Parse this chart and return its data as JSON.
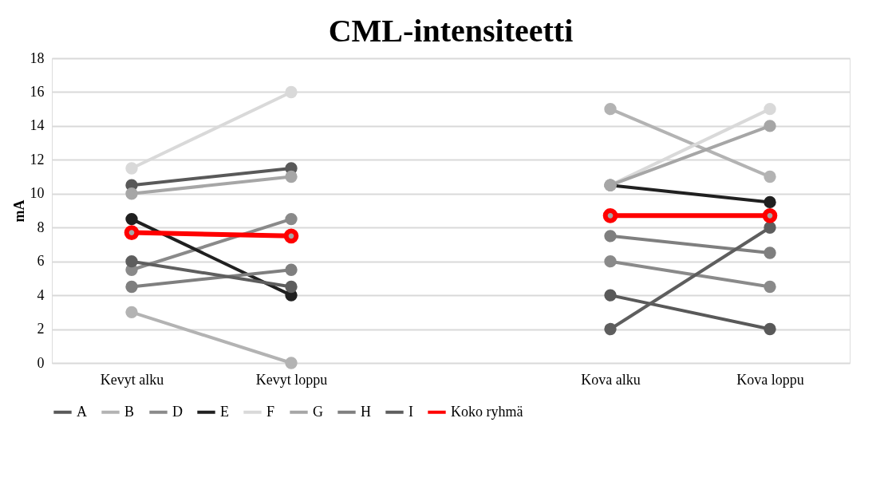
{
  "chart_data": {
    "type": "line",
    "title": "CML-intensiteetti",
    "ylabel": "mA",
    "categories": [
      "Kevyt alku",
      "Kevyt loppu",
      null,
      "Kova alku",
      "Kova loppu"
    ],
    "ylim": [
      0,
      18
    ],
    "yticks": [
      0,
      2,
      4,
      6,
      8,
      10,
      12,
      14,
      16,
      18
    ],
    "grid": "y",
    "legend": "bottom",
    "marker": "circle",
    "series": [
      {
        "name": "A",
        "color": "#595959",
        "values": [
          10.5,
          11.5,
          null,
          4,
          2
        ]
      },
      {
        "name": "B",
        "color": "#b3b3b3",
        "values": [
          3,
          0,
          null,
          15,
          11
        ]
      },
      {
        "name": "D",
        "color": "#8a8a8a",
        "values": [
          5.5,
          8.5,
          null,
          6,
          4.5
        ]
      },
      {
        "name": "E",
        "color": "#202020",
        "values": [
          8.5,
          4,
          null,
          10.5,
          9.5
        ]
      },
      {
        "name": "F",
        "color": "#d9d9d9",
        "values": [
          11.5,
          16,
          null,
          10.5,
          15
        ]
      },
      {
        "name": "G",
        "color": "#a6a6a6",
        "values": [
          10,
          11,
          null,
          10.5,
          14
        ]
      },
      {
        "name": "H",
        "color": "#7f7f7f",
        "values": [
          4.5,
          5.5,
          null,
          7.5,
          6.5
        ]
      },
      {
        "name": "I",
        "color": "#5e5e5e",
        "values": [
          6,
          4.5,
          null,
          2,
          8
        ]
      },
      {
        "name": "Koko ryhmä",
        "color": "#ff0000",
        "values": [
          7.7,
          7.5,
          null,
          8.7,
          8.7
        ]
      }
    ]
  }
}
